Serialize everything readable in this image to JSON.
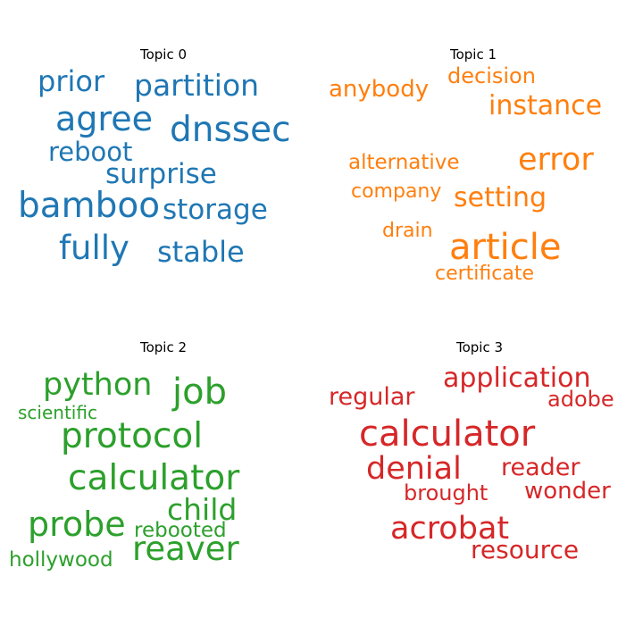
{
  "chart_data": [
    {
      "type": "wordcloud",
      "title": "Topic 0",
      "color": "#1f77b4",
      "words": [
        "agree",
        "dnssec",
        "bamboo",
        "partition",
        "surprise",
        "storage",
        "fully",
        "stable",
        "prior",
        "reboot"
      ]
    },
    {
      "type": "wordcloud",
      "title": "Topic 1",
      "color": "#ff7f0e",
      "words": [
        "article",
        "error",
        "instance",
        "setting",
        "anybody",
        "decision",
        "alternative",
        "company",
        "drain",
        "certificate"
      ]
    },
    {
      "type": "wordcloud",
      "title": "Topic 2",
      "color": "#2ca02c",
      "words": [
        "calculator",
        "protocol",
        "job",
        "python",
        "probe",
        "reaver",
        "child",
        "rebooted",
        "scientific",
        "hollywood"
      ]
    },
    {
      "type": "wordcloud",
      "title": "Topic 3",
      "color": "#d62728",
      "words": [
        "calculator",
        "acrobat",
        "denial",
        "application",
        "reader",
        "resource",
        "wonder",
        "regular",
        "adobe",
        "brought"
      ]
    }
  ]
}
